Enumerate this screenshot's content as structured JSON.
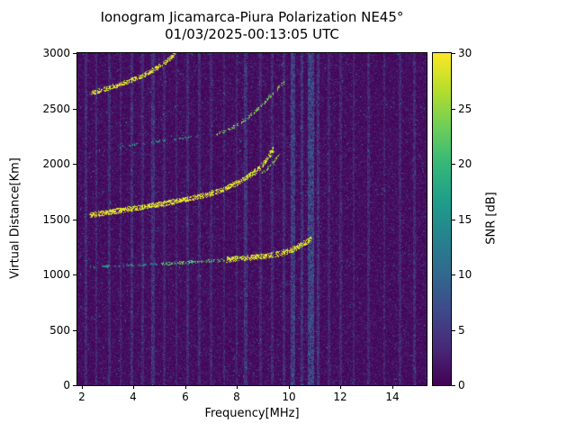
{
  "title": {
    "line1": "Ionogram Jicamarca-Piura Polarization NE45°",
    "line2": "01/03/2025-00:13:05 UTC"
  },
  "axes": {
    "xlabel": "Frequency[MHz]",
    "ylabel": "Virtual Distance[Km]",
    "x_ticks": [
      2,
      4,
      6,
      8,
      10,
      12,
      14
    ],
    "y_ticks": [
      0,
      500,
      1000,
      1500,
      2000,
      2500,
      3000
    ],
    "x_range": [
      1.83,
      15.33
    ],
    "y_range": [
      0,
      3000
    ]
  },
  "colorbar": {
    "label": "SNR [dB]",
    "ticks": [
      0,
      5,
      10,
      15,
      20,
      25,
      30
    ],
    "range": [
      0,
      30
    ],
    "viridis_stops": [
      "#440154",
      "#482878",
      "#3e4989",
      "#31688e",
      "#26828e",
      "#1f9e89",
      "#35b779",
      "#6ece58",
      "#b5de2b",
      "#fde725"
    ]
  },
  "chart_data": {
    "type": "heatmap",
    "title": "Ionogram Jicamarca-Piura Polarization NE45° 01/03/2025-00:13:05 UTC",
    "xlabel": "Frequency[MHz]",
    "ylabel": "Virtual Distance[Km]",
    "zlabel": "SNR [dB]",
    "xlim": [
      1.83,
      15.33
    ],
    "ylim": [
      0,
      3000
    ],
    "zlim": [
      0,
      30
    ],
    "background_db": "mostly 0-4 dB dark purple noise",
    "noise": {
      "seed": 42,
      "base_db": 1.25,
      "speckle_prob": 0.004,
      "speckle_db": [
        8,
        18
      ]
    },
    "stripes": [
      {
        "f": 2.15,
        "w": 0.1,
        "db": 4
      },
      {
        "f": 2.55,
        "w": 0.08,
        "db": 3.5
      },
      {
        "f": 3.05,
        "w": 0.1,
        "db": 4
      },
      {
        "f": 3.5,
        "w": 0.08,
        "db": 3
      },
      {
        "f": 3.95,
        "w": 0.1,
        "db": 4.5
      },
      {
        "f": 4.35,
        "w": 0.08,
        "db": 3.5
      },
      {
        "f": 4.75,
        "w": 0.14,
        "db": 5
      },
      {
        "f": 5.2,
        "w": 0.1,
        "db": 3.5
      },
      {
        "f": 5.65,
        "w": 0.08,
        "db": 3
      },
      {
        "f": 6.1,
        "w": 0.12,
        "db": 4
      },
      {
        "f": 6.55,
        "w": 0.1,
        "db": 3.5
      },
      {
        "f": 7.0,
        "w": 0.1,
        "db": 3
      },
      {
        "f": 7.5,
        "w": 0.08,
        "db": 3
      },
      {
        "f": 8.0,
        "w": 0.08,
        "db": 3
      },
      {
        "f": 8.35,
        "w": 0.14,
        "db": 5
      },
      {
        "f": 8.9,
        "w": 0.1,
        "db": 3.5
      },
      {
        "f": 9.35,
        "w": 0.1,
        "db": 4
      },
      {
        "f": 9.8,
        "w": 0.1,
        "db": 4
      },
      {
        "f": 10.15,
        "w": 0.18,
        "db": 7
      },
      {
        "f": 10.5,
        "w": 0.1,
        "db": 5
      },
      {
        "f": 10.85,
        "w": 0.26,
        "db": 8
      },
      {
        "f": 11.15,
        "w": 0.1,
        "db": 5
      },
      {
        "f": 11.55,
        "w": 0.08,
        "db": 3
      },
      {
        "f": 12.0,
        "w": 0.1,
        "db": 3.5
      },
      {
        "f": 12.5,
        "w": 0.08,
        "db": 3
      },
      {
        "f": 13.1,
        "w": 0.1,
        "db": 3.5
      },
      {
        "f": 13.7,
        "w": 0.08,
        "db": 3
      },
      {
        "f": 14.3,
        "w": 0.1,
        "db": 3.5
      },
      {
        "f": 14.85,
        "w": 0.1,
        "db": 4
      }
    ],
    "traces": [
      {
        "name": "second-hop-upper-arc",
        "points": [
          [
            2.35,
            2640
          ],
          [
            2.7,
            2665
          ],
          [
            3.2,
            2700
          ],
          [
            3.8,
            2748
          ],
          [
            4.4,
            2805
          ],
          [
            4.9,
            2870
          ],
          [
            5.3,
            2935
          ],
          [
            5.62,
            3005
          ]
        ],
        "thickness": 2.4,
        "density": 0.8,
        "db": 28
      },
      {
        "name": "second-hop-flat-band",
        "points": [
          [
            2.5,
            2120
          ],
          [
            3.5,
            2160
          ],
          [
            4.5,
            2195
          ],
          [
            5.5,
            2225
          ],
          [
            6.6,
            2255
          ]
        ],
        "thickness": 1.2,
        "density": 0.25,
        "db": 16
      },
      {
        "name": "second-hop-rising-arc",
        "points": [
          [
            7.2,
            2260
          ],
          [
            7.8,
            2330
          ],
          [
            8.4,
            2420
          ],
          [
            8.9,
            2520
          ],
          [
            9.4,
            2640
          ],
          [
            9.8,
            2745
          ]
        ],
        "thickness": 1.7,
        "density": 0.55,
        "db": 23
      },
      {
        "name": "f-trace-main",
        "points": [
          [
            2.3,
            1540
          ],
          [
            3.0,
            1565
          ],
          [
            4.0,
            1600
          ],
          [
            5.0,
            1638
          ],
          [
            6.0,
            1680
          ],
          [
            6.8,
            1722
          ],
          [
            7.5,
            1775
          ],
          [
            8.1,
            1840
          ],
          [
            8.7,
            1930
          ],
          [
            9.1,
            2030
          ],
          [
            9.4,
            2150
          ]
        ],
        "thickness": 2.8,
        "density": 0.9,
        "db": 28
      },
      {
        "name": "f-trace-x-mode",
        "points": [
          [
            8.8,
            1890
          ],
          [
            9.3,
            1990
          ],
          [
            9.65,
            2110
          ]
        ],
        "thickness": 1.5,
        "density": 0.5,
        "db": 23
      },
      {
        "name": "low-trace-faint",
        "points": [
          [
            2.2,
            1068
          ],
          [
            3.0,
            1078
          ],
          [
            4.0,
            1088
          ],
          [
            5.0,
            1098
          ]
        ],
        "thickness": 1.2,
        "density": 0.32,
        "db": 16
      },
      {
        "name": "low-trace-mid",
        "points": [
          [
            5.0,
            1098
          ],
          [
            6.0,
            1112
          ],
          [
            7.0,
            1126
          ],
          [
            7.6,
            1136
          ]
        ],
        "thickness": 1.6,
        "density": 0.55,
        "db": 21
      },
      {
        "name": "low-trace-bright",
        "points": [
          [
            7.6,
            1136
          ],
          [
            8.3,
            1152
          ],
          [
            9.0,
            1168
          ],
          [
            9.5,
            1185
          ],
          [
            10.0,
            1215
          ],
          [
            10.4,
            1258
          ],
          [
            10.7,
            1302
          ],
          [
            10.88,
            1335
          ]
        ],
        "thickness": 3.0,
        "density": 0.92,
        "db": 28
      }
    ]
  }
}
